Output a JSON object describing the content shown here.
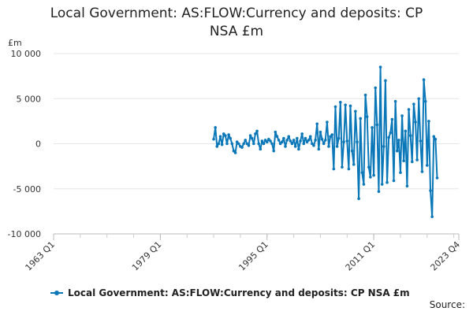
{
  "chart_data": {
    "type": "line",
    "title": [
      "Local Government: AS:FLOW:Currency and deposits: CP",
      "NSA £m"
    ],
    "unit_label": "£m",
    "ylim": [
      -10000,
      10000
    ],
    "yticks": [
      10000,
      5000,
      0,
      -5000,
      -10000
    ],
    "ytick_labels": [
      "10 000",
      "5 000",
      "0",
      "-5 000",
      "-10 000"
    ],
    "x_range": [
      "1963 Q1",
      "2023 Q4"
    ],
    "xtick_labels": [
      "1963 Q1",
      "1979 Q1",
      "1995 Q1",
      "2011 Q1",
      "2023 Q4"
    ],
    "grid": true,
    "legend_position": "bottom-left",
    "series": [
      {
        "name": "Local Government: AS:FLOW:Currency and deposits: CP NSA £m",
        "color": "#0a77b8",
        "start": "1987 Q1",
        "values": [
          500,
          1800,
          -300,
          0,
          800,
          -100,
          1100,
          900,
          0,
          1000,
          600,
          0,
          -800,
          -1000,
          200,
          0,
          -300,
          -400,
          0,
          400,
          0,
          -200,
          900,
          600,
          0,
          1100,
          1400,
          0,
          -600,
          300,
          0,
          400,
          200,
          500,
          300,
          0,
          -800,
          1300,
          800,
          400,
          0,
          200,
          600,
          -300,
          400,
          800,
          300,
          0,
          400,
          -300,
          600,
          -600,
          300,
          1100,
          0,
          600,
          200,
          400,
          800,
          0,
          -200,
          400,
          2200,
          -600,
          1300,
          500,
          0,
          400,
          2400,
          -300,
          800,
          1000,
          -2800,
          4100,
          -300,
          600,
          4600,
          -2600,
          200,
          4300,
          300,
          -2800,
          4200,
          -800,
          -2300,
          3600,
          200,
          -6100,
          2800,
          -3200,
          -4500,
          5400,
          3000,
          -2600,
          -3700,
          1800,
          -3500,
          6200,
          2100,
          -5300,
          8500,
          -4500,
          -300,
          7000,
          -4300,
          700,
          1200,
          2700,
          -4100,
          4700,
          -800,
          400,
          -3200,
          3100,
          -1900,
          1400,
          -4700,
          3800,
          900,
          -2000,
          4400,
          2400,
          -1800,
          5000,
          300,
          -3100,
          7100,
          4700,
          -2400,
          2500,
          -5200,
          -8100,
          800,
          500,
          -3800
        ]
      }
    ]
  },
  "legend": {
    "label": "Local Government: AS:FLOW:Currency and deposits: CP NSA £m"
  },
  "source": {
    "label": "Source:"
  }
}
